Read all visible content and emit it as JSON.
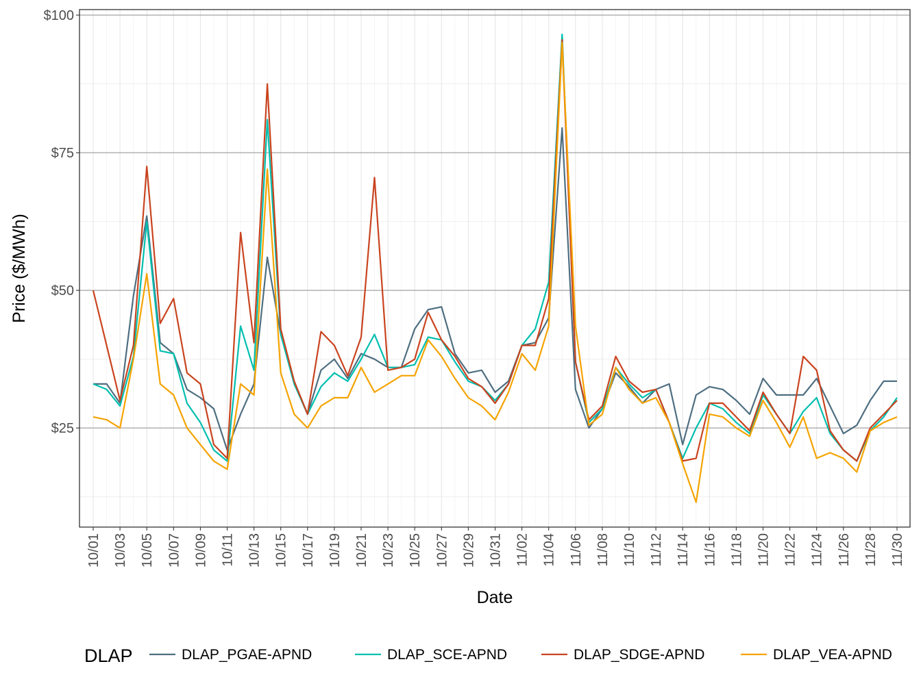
{
  "chart_data": {
    "type": "line",
    "xlabel": "Date",
    "ylabel": "Price ($/MWh)",
    "ylim": [
      7,
      101
    ],
    "y_ticks": [
      {
        "value": 25,
        "label": "$25"
      },
      {
        "value": 50,
        "label": "$50"
      },
      {
        "value": 75,
        "label": "$75"
      },
      {
        "value": 100,
        "label": "$100"
      }
    ],
    "x": [
      "10/01",
      "10/02",
      "10/03",
      "10/04",
      "10/05",
      "10/06",
      "10/07",
      "10/08",
      "10/09",
      "10/10",
      "10/11",
      "10/12",
      "10/13",
      "10/14",
      "10/15",
      "10/16",
      "10/17",
      "10/18",
      "10/19",
      "10/20",
      "10/21",
      "10/22",
      "10/23",
      "10/24",
      "10/25",
      "10/26",
      "10/27",
      "10/28",
      "10/29",
      "10/30",
      "10/31",
      "11/01",
      "11/02",
      "11/03",
      "11/04",
      "11/05",
      "11/06",
      "11/07",
      "11/08",
      "11/09",
      "11/10",
      "11/11",
      "11/12",
      "11/13",
      "11/14",
      "11/15",
      "11/16",
      "11/17",
      "11/18",
      "11/19",
      "11/20",
      "11/21",
      "11/22",
      "11/23",
      "11/24",
      "11/25",
      "11/26",
      "11/27",
      "11/28",
      "11/29",
      "11/30"
    ],
    "x_tick_labels": [
      "10/01",
      "10/03",
      "10/05",
      "10/07",
      "10/09",
      "10/11",
      "10/13",
      "10/15",
      "10/17",
      "10/19",
      "10/21",
      "10/23",
      "10/25",
      "10/27",
      "10/29",
      "10/31",
      "11/02",
      "11/04",
      "11/06",
      "11/08",
      "11/10",
      "11/12",
      "11/14",
      "11/16",
      "11/18",
      "11/20",
      "11/22",
      "11/24",
      "11/26",
      "11/28",
      "11/30"
    ],
    "grid": true,
    "legend_title": "DLAP",
    "legend_position": "bottom",
    "series": [
      {
        "name": "DLAP_PGAE-APND",
        "color": "#4e6e80",
        "values": [
          33,
          33,
          29.5,
          49,
          63.5,
          40.5,
          38.5,
          32,
          30.5,
          28.5,
          21,
          27.5,
          33,
          56,
          42,
          33.5,
          27.5,
          35.5,
          37.5,
          34,
          38.5,
          37.5,
          36,
          36,
          43,
          46.5,
          47,
          38.5,
          35,
          35.5,
          31.5,
          33.5,
          40,
          40.5,
          45,
          79.5,
          32,
          25,
          28.5,
          35,
          32.5,
          29.5,
          32,
          33,
          22,
          31,
          32.5,
          32,
          30,
          27.5,
          34,
          31,
          31,
          31,
          34,
          29,
          24,
          25.5,
          30,
          33.5,
          33.5
        ]
      },
      {
        "name": "DLAP_SCE-APND",
        "color": "#00bfae",
        "values": [
          33,
          32,
          29,
          38,
          62.5,
          39,
          38.5,
          29.5,
          26,
          21,
          19,
          43.5,
          35.5,
          81,
          42,
          33,
          27.5,
          32.5,
          35,
          33.5,
          37.5,
          42,
          36,
          36,
          36.5,
          41.5,
          41,
          37,
          33.5,
          32.5,
          30,
          33,
          40,
          43,
          51.5,
          96.5,
          37,
          26,
          28.5,
          36,
          33,
          30.5,
          32,
          26,
          19.5,
          25,
          29.5,
          28.5,
          26,
          24,
          31,
          27.5,
          24,
          28,
          30.5,
          24,
          21,
          19,
          24.5,
          27,
          30.5
        ]
      },
      {
        "name": "DLAP_SDGE-APND",
        "color": "#c9431e",
        "values": [
          50,
          40,
          30,
          40,
          72.5,
          44,
          48.5,
          35,
          33,
          22,
          19.5,
          60.5,
          40.5,
          87.5,
          43,
          33.5,
          27.5,
          42.5,
          40,
          34.5,
          41.5,
          70.5,
          35.5,
          36,
          37.5,
          46,
          41,
          38,
          34,
          32.5,
          29.5,
          33,
          40,
          40,
          48.5,
          95.5,
          37,
          26.5,
          29,
          38,
          33.5,
          31.5,
          32,
          26,
          19,
          19.5,
          29.5,
          29.5,
          27,
          24.5,
          31.5,
          27.5,
          24,
          38,
          35.5,
          24.5,
          21,
          19,
          25,
          27.5,
          30
        ]
      },
      {
        "name": "DLAP_VEA-APND",
        "color": "#f5a300",
        "values": [
          27,
          26.5,
          25,
          37.5,
          53,
          33,
          31,
          25,
          22,
          19,
          17.5,
          33,
          31,
          72,
          35,
          27.5,
          25,
          29,
          30.5,
          30.5,
          36,
          31.5,
          33,
          34.5,
          34.5,
          41,
          38,
          34,
          30.5,
          29,
          26.5,
          31.5,
          38.5,
          35.5,
          43.5,
          95,
          43.5,
          25.5,
          27.5,
          36,
          32,
          29.5,
          30.5,
          26,
          18.5,
          11.5,
          27.5,
          27,
          25,
          23.5,
          30,
          26,
          21.5,
          27,
          19.5,
          20.5,
          19.5,
          17,
          24.5,
          26,
          27
        ]
      }
    ]
  }
}
